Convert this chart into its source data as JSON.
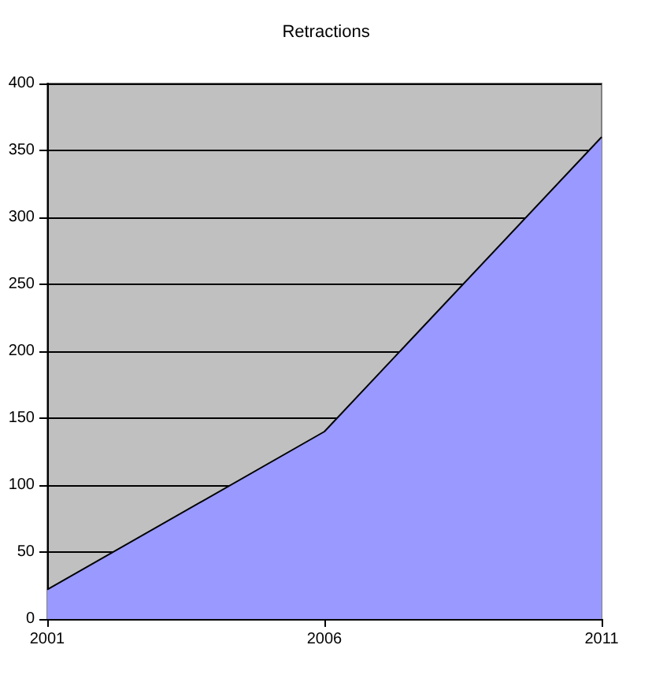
{
  "chart_data": {
    "type": "area",
    "title": "Retractions",
    "x": [
      2001,
      2006,
      2011
    ],
    "series": [
      {
        "color": "#9999ff",
        "values": [
          22,
          140,
          360
        ]
      }
    ],
    "xlim": [
      2001,
      2011
    ],
    "xticks": [
      2001,
      2006,
      2011
    ],
    "ylim": [
      0,
      400
    ],
    "yticks": [
      0,
      50,
      100,
      150,
      200,
      250,
      300,
      350,
      400
    ],
    "grid": "y",
    "marker": "none",
    "line_style": "solid"
  }
}
